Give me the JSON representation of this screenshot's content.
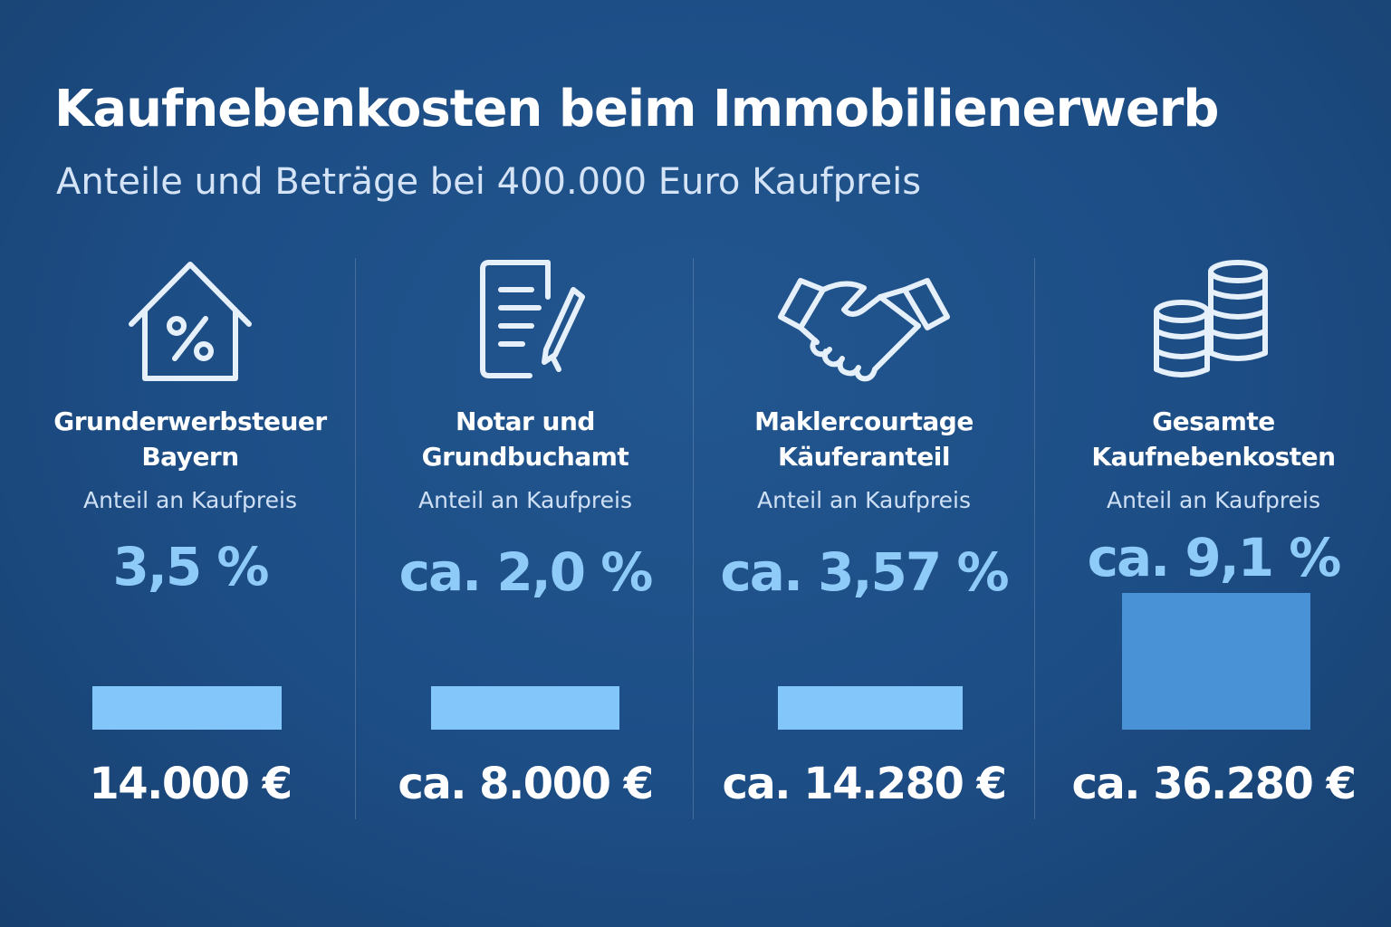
{
  "header": {
    "title": "Kaufnebenkosten beim Immobilienerwerb",
    "subtitle": "Anteile und Beträge bei 400.000 Euro Kaufpreis"
  },
  "colors": {
    "background": "#1d4d85",
    "bar_light": "#83c6f9",
    "bar_total": "#4a92d6",
    "percent_text": "#8fcbf8"
  },
  "chart_data": {
    "type": "bar",
    "categories": [
      "Grunderwerbsteuer Bayern",
      "Notar und Grundbuchamt",
      "Maklercourtage Käuferanteil",
      "Gesamte Kaufnebenkosten"
    ],
    "values": [
      3.5,
      2.0,
      3.57,
      9.1
    ],
    "amounts_eur": [
      14000,
      8000,
      14280,
      36280
    ],
    "title": "Kaufnebenkosten beim Immobilienerwerb",
    "subtitle": "Anteile und Beträge bei 400.000 Euro Kaufpreis"
  },
  "items": [
    {
      "icon": "house-percent-icon",
      "name_line1": "Grunderwerbsteuer",
      "name_line2": "Bayern",
      "share_label": "Anteil an Kaufpreis",
      "percent": "3,5 %",
      "amount": "14.000 €"
    },
    {
      "icon": "document-pen-icon",
      "name_line1": "Notar und",
      "name_line2": "Grundbuchamt",
      "share_label": "Anteil an Kaufpreis",
      "percent": "ca. 2,0 %",
      "amount": "ca. 8.000 €"
    },
    {
      "icon": "handshake-icon",
      "name_line1": "Maklercourtage",
      "name_line2": "Käuferanteil",
      "share_label": "Anteil an Kaufpreis",
      "percent": "ca. 3,57 %",
      "amount": "ca. 14.280 €"
    },
    {
      "icon": "coin-stacks-icon",
      "name_line1": "Gesamte",
      "name_line2": "Kaufnebenkosten",
      "share_label": "Anteil an Kaufpreis",
      "percent": "ca. 9,1 %",
      "amount": "ca. 36.280 €"
    }
  ]
}
